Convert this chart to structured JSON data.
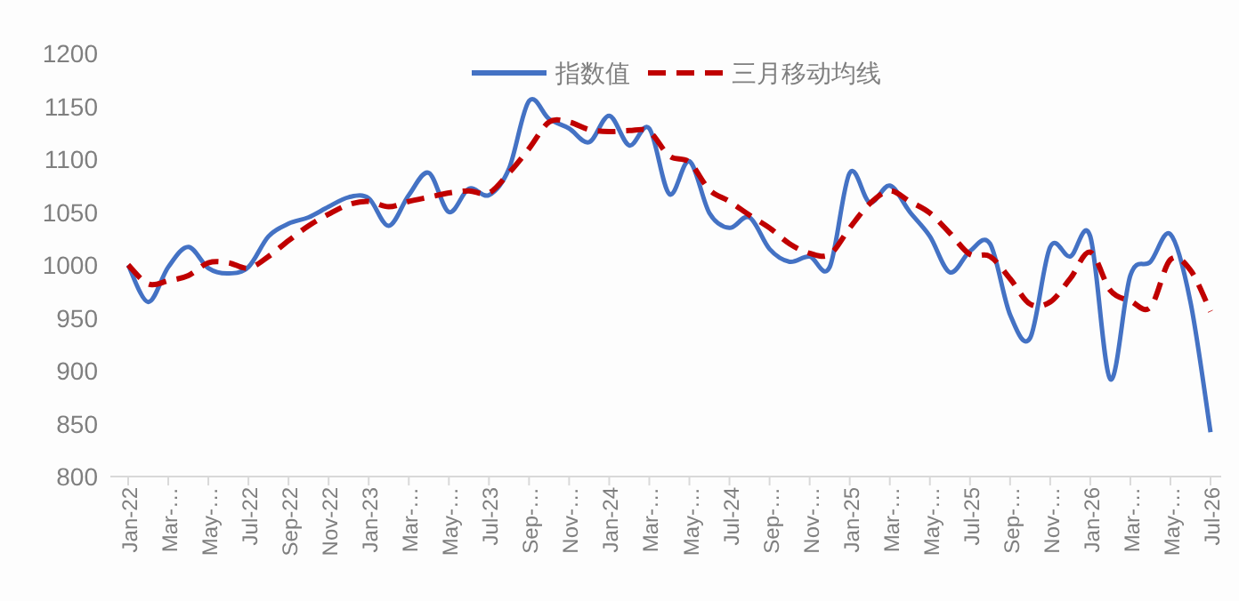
{
  "chart_data": {
    "type": "line",
    "categories": [
      "Jan-22",
      null,
      "Mar-…",
      null,
      "May-…",
      null,
      "Jul-22",
      null,
      "Sep-22",
      null,
      "Nov-22",
      null,
      "Jan-23",
      null,
      "Mar-…",
      null,
      "May-…",
      null,
      "Jul-23",
      null,
      "Sep-…",
      null,
      "Nov-…",
      null,
      "Jan-24",
      null,
      "Mar-…",
      null,
      "May-…",
      null,
      "Jul-24",
      null,
      "Sep-…",
      null,
      "Nov-…",
      null,
      "Jan-25",
      null,
      "Mar-…",
      null,
      "May-…",
      null,
      "Jul-25",
      null,
      "Sep-…",
      null,
      "Nov-…",
      null,
      "Jan-26",
      null,
      "Mar-…",
      null,
      "May-…",
      null,
      "Jul-26"
    ],
    "series": [
      {
        "name": "指数值",
        "color": "#4472c4",
        "line_style": "solid",
        "values": [
          1000,
          965,
          998,
          1017,
          997,
          992,
          998,
          1027,
          1039,
          1045,
          1055,
          1064,
          1063,
          1037,
          1066,
          1087,
          1050,
          1072,
          1066,
          1091,
          1155,
          1138,
          1129,
          1116,
          1141,
          1113,
          1129,
          1067,
          1098,
          1049,
          1035,
          1045,
          1015,
          1003,
          1008,
          998,
          1087,
          1059,
          1075,
          1050,
          1027,
          993,
          1013,
          1020,
          953,
          931,
          1017,
          1008,
          1027,
          892,
          990,
          1003,
          1029,
          965,
          842
        ]
      },
      {
        "name": "三月移动均线",
        "color": "#c00000",
        "line_style": "dashed",
        "values": [
          1000,
          982,
          985,
          990,
          1002,
          1002,
          997,
          1008,
          1023,
          1037,
          1048,
          1057,
          1060,
          1055,
          1060,
          1064,
          1068,
          1070,
          1068,
          1087,
          1110,
          1135,
          1135,
          1128,
          1126,
          1127,
          1126,
          1103,
          1097,
          1071,
          1060,
          1047,
          1035,
          1020,
          1011,
          1010,
          1035,
          1058,
          1070,
          1060,
          1049,
          1030,
          1010,
          1008,
          987,
          963,
          965,
          987,
          1012,
          976,
          966,
          960,
          1005,
          995,
          956
        ]
      }
    ],
    "ylim": [
      800,
      1200
    ],
    "yticks": [
      800,
      850,
      900,
      950,
      1000,
      1050,
      1100,
      1150,
      1200
    ],
    "grid": false,
    "legend": "top",
    "marker": "none"
  }
}
